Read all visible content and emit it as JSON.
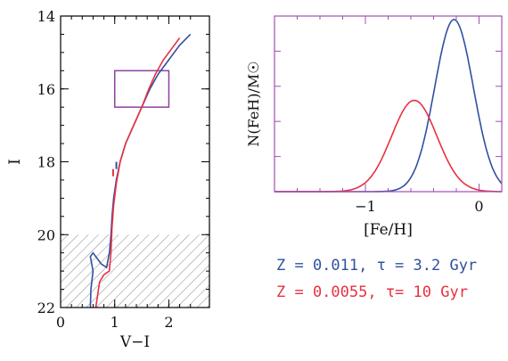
{
  "colors": {
    "frame_left": "#000000",
    "frame_right": "#a050b0",
    "blue": "#3050a0",
    "red": "#e83040",
    "hatch": "#888888",
    "box": "#9040a0"
  },
  "chart_data": [
    {
      "type": "line",
      "xlabel": "V−I",
      "ylabel": "I",
      "xlim": [
        0,
        2.75
      ],
      "ylim": [
        22,
        14
      ],
      "y_inverted": true,
      "xticks": [
        "0",
        "1",
        "2"
      ],
      "xtick_values": [
        0,
        1,
        2
      ],
      "yticks": [
        "14",
        "16",
        "18",
        "20",
        "22"
      ],
      "ytick_values": [
        14,
        16,
        18,
        20,
        22
      ],
      "selection_box": {
        "x": [
          1.0,
          2.0
        ],
        "y": [
          15.5,
          16.5
        ]
      },
      "hatched_region": {
        "x": [
          0,
          2.75
        ],
        "y": [
          20,
          22
        ]
      },
      "series": [
        {
          "color": "blue",
          "x": [
            0.55,
            0.56,
            0.6,
            0.55,
            0.6,
            0.75,
            0.85,
            0.9,
            0.92,
            0.93,
            0.95,
            0.98,
            1.03,
            1.1,
            1.2,
            1.35,
            1.5,
            1.65,
            1.8,
            2.0,
            2.2,
            2.4
          ],
          "y": [
            22.0,
            21.5,
            21.0,
            20.6,
            20.5,
            20.8,
            20.9,
            20.5,
            20.2,
            20.0,
            19.5,
            19.0,
            18.5,
            18.0,
            17.5,
            17.0,
            16.5,
            16.0,
            15.6,
            15.2,
            14.8,
            14.5
          ]
        },
        {
          "color": "red",
          "x": [
            0.65,
            0.68,
            0.72,
            0.8,
            0.9,
            0.93,
            0.95,
            0.98,
            1.03,
            1.1,
            1.2,
            1.35,
            1.5,
            1.63,
            1.75,
            1.9,
            2.05,
            2.2
          ],
          "y": [
            22.0,
            21.7,
            21.3,
            21.1,
            21.0,
            20.5,
            19.8,
            19.2,
            18.6,
            18.0,
            17.5,
            17.0,
            16.5,
            16.0,
            15.6,
            15.2,
            14.9,
            14.6
          ]
        }
      ],
      "markers": [
        {
          "color": "blue",
          "x": 1.03,
          "y": 18.1
        },
        {
          "color": "red",
          "x": 0.97,
          "y": 18.3
        }
      ]
    },
    {
      "type": "line",
      "xlabel": "[Fe/H]",
      "ylabel": "N(FeH)/M☉",
      "xlim": [
        -1.8,
        0.2
      ],
      "ylim": [
        0,
        1.0
      ],
      "xticks": [
        "−1",
        "0"
      ],
      "xtick_values": [
        -1,
        0
      ],
      "series": [
        {
          "color": "blue",
          "mu": -0.22,
          "sigma": 0.17,
          "peak": 0.98
        },
        {
          "color": "red",
          "mu": -0.57,
          "sigma": 0.2,
          "peak": 0.52
        }
      ]
    }
  ],
  "legend": {
    "line1": "Z = 0.011, τ = 3.2 Gyr",
    "line2": "Z = 0.0055, τ= 10 Gyr"
  }
}
